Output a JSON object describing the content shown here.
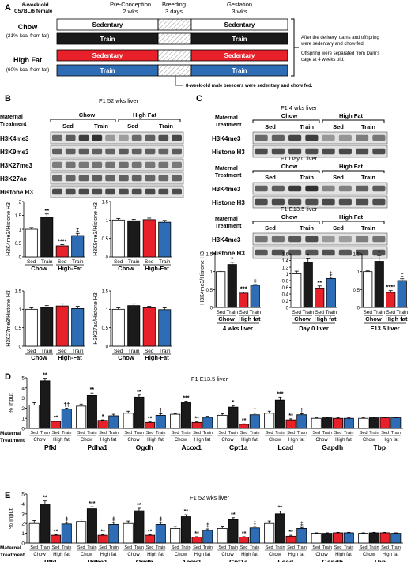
{
  "colors": {
    "sed": "#ffffff",
    "train": "#1a1a1a",
    "hf_sed": "#e8202a",
    "hf_train": "#2e6db5",
    "hatch": "#9a9a9a"
  },
  "panelA": {
    "letter": "A",
    "mouse_line1": "6-week-old",
    "mouse_line2": "C57BL/6 female",
    "col_preconception": [
      "Pre-Conception",
      "2 wks"
    ],
    "col_breeding": [
      "Breeding",
      "3 days"
    ],
    "col_gestation": [
      "Gestation",
      "3 wks"
    ],
    "chow_label": "Chow",
    "chow_sub": "(21% kcal from fat)",
    "hf_label": "High Fat",
    "hf_sub": "(60% kcal from fat)",
    "row_labels": [
      "Sedentary",
      "Train",
      "Sedentary",
      "Train"
    ],
    "note1": [
      "After the delivery, dams and offspring",
      "were sedentary and chow-fed."
    ],
    "note2": [
      "Offspring were separated from Dam's",
      "cage at 4 weeks old."
    ],
    "male_note": "8-week-old male breeders were sedentary and chow fed."
  },
  "panelB": {
    "letter": "B",
    "title": "F1 52 wks liver",
    "maternal": [
      "Maternal",
      "Treatment"
    ],
    "groups": [
      "Chow",
      "High Fat"
    ],
    "lanes": [
      "Sed",
      "Train",
      "Sed",
      "Train"
    ],
    "blots": [
      "H3K4me3",
      "H3K9me3",
      "H3K27me3",
      "H3K27ac",
      "Histone H3"
    ],
    "axis_group": [
      "Chow",
      "High-Fat"
    ]
  },
  "panelC": {
    "letter": "C",
    "blot_sets": [
      {
        "title": "F1 4 wks liver",
        "bands": [
          "H3K4me3",
          "Histone H3"
        ]
      },
      {
        "title": "F1 Day 0 liver",
        "bands": [
          "H3K4me3",
          "Histone H3"
        ]
      },
      {
        "title": "F1 E13.5 liver",
        "bands": [
          "H3K4me3",
          "Histone H3"
        ]
      }
    ],
    "maternal": [
      "Maternal",
      "Treatment"
    ],
    "groups": [
      "Chow",
      "High Fat"
    ],
    "lanes": [
      "Sed",
      "Train",
      "Sed",
      "Train"
    ],
    "ylabel": "H3K4me3/Histone H3",
    "sub_groups": [
      "Chow",
      "High fat"
    ]
  },
  "panelD": {
    "letter": "D",
    "title": "F1 E13.5 liver",
    "ylabel": "% Input"
  },
  "panelE": {
    "letter": "E",
    "title": "F1 52 wks liver",
    "ylabel": "% Input"
  },
  "chart_data": [
    {
      "type": "bar",
      "panel": "B",
      "ylabel": "H3K4me3/Histone H3",
      "ylim": [
        0,
        2
      ],
      "yticks": [
        "0",
        "0.5",
        "1",
        "1.5",
        "2"
      ],
      "categories": [
        "Sed",
        "Train",
        "Sed",
        "Train"
      ],
      "groups": [
        "Chow",
        "High-Fat"
      ],
      "values": [
        1.0,
        1.43,
        0.4,
        0.77
      ],
      "errors": [
        0.06,
        0.12,
        0.04,
        0.08
      ],
      "sig": [
        "",
        "**",
        "****",
        "‡"
      ]
    },
    {
      "type": "bar",
      "panel": "B",
      "ylabel": "H3K9me3/Histone H3",
      "ylim": [
        0,
        1.5
      ],
      "yticks": [
        "0",
        "0.5",
        "1",
        "1.5"
      ],
      "categories": [
        "Sed",
        "Train",
        "Sed",
        "Train"
      ],
      "groups": [
        "Chow",
        "High-Fat"
      ],
      "values": [
        1.0,
        0.98,
        1.01,
        0.94
      ],
      "errors": [
        0.04,
        0.04,
        0.04,
        0.05
      ],
      "sig": [
        "",
        "",
        "",
        ""
      ]
    },
    {
      "type": "bar",
      "panel": "B",
      "ylabel": "H3K27me3/Histone H3",
      "ylim": [
        0,
        1.5
      ],
      "yticks": [
        "0",
        "0.5",
        "1",
        "1.5"
      ],
      "categories": [
        "Sed",
        "Train",
        "Sed",
        "Train"
      ],
      "groups": [
        "Chow",
        "High-Fat"
      ],
      "values": [
        1.0,
        1.05,
        1.09,
        1.02
      ],
      "errors": [
        0.04,
        0.05,
        0.06,
        0.06
      ],
      "sig": [
        "",
        "",
        "",
        ""
      ]
    },
    {
      "type": "bar",
      "panel": "B",
      "ylabel": "H3K27ac/Histone H3",
      "ylim": [
        0,
        1.5
      ],
      "yticks": [
        "0",
        "0.5",
        "1",
        "1.5"
      ],
      "categories": [
        "Sed",
        "Train",
        "Sed",
        "Train"
      ],
      "groups": [
        "Chow",
        "High-Fat"
      ],
      "values": [
        1.0,
        1.1,
        1.04,
        0.99
      ],
      "errors": [
        0.04,
        0.05,
        0.04,
        0.05
      ],
      "sig": [
        "",
        "",
        "",
        ""
      ]
    },
    {
      "type": "bar",
      "panel": "C",
      "subtitle": "4 wks liver",
      "ylim": [
        0,
        1.5
      ],
      "yticks": [
        "0",
        "0.5",
        "1",
        "1.5"
      ],
      "categories": [
        "Sed",
        "Train",
        "Sed",
        "Train"
      ],
      "groups": [
        "Chow",
        "High fat"
      ],
      "values": [
        1.0,
        1.2,
        0.4,
        0.62
      ],
      "errors": [
        0.05,
        0.06,
        0.03,
        0.02
      ],
      "sig": [
        "",
        "*",
        "***",
        "‡"
      ]
    },
    {
      "type": "bar",
      "panel": "C",
      "subtitle": "Day 0 liver",
      "ylim": [
        0,
        1.6
      ],
      "yticks": [
        "0",
        "0.2",
        "0.4",
        "0.6",
        "0.8",
        "1",
        "1.2",
        "1.4",
        "1.6"
      ],
      "categories": [
        "Sed",
        "Train",
        "Sed",
        "Train"
      ],
      "groups": [
        "Chow",
        "High fat"
      ],
      "values": [
        1.0,
        1.33,
        0.58,
        0.86
      ],
      "errors": [
        0.08,
        0.12,
        0.06,
        0.04
      ],
      "sig": [
        "",
        "*",
        "**",
        "‡"
      ]
    },
    {
      "type": "bar",
      "panel": "C",
      "subtitle": "E13.5 liver",
      "ylim": [
        0,
        1.5
      ],
      "yticks": [
        "0",
        "0.5",
        "1",
        "1.5"
      ],
      "categories": [
        "Sed",
        "Train",
        "Sed",
        "Train"
      ],
      "groups": [
        "Chow",
        "High fat"
      ],
      "values": [
        1.0,
        1.29,
        0.42,
        0.75
      ],
      "errors": [
        0.02,
        0.16,
        0.05,
        0.05
      ],
      "sig": [
        "",
        "*",
        "****",
        "‡"
      ]
    },
    {
      "type": "bar",
      "panel": "D",
      "title": "F1 E13.5 liver",
      "ylabel": "% Input",
      "ylim": [
        0,
        5
      ],
      "yticks": [
        "0",
        "1",
        "2",
        "3",
        "4",
        "5"
      ],
      "xlabel_left": [
        "Maternal",
        "Treatment"
      ],
      "categories": [
        "Pfkl",
        "Pdha1",
        "Ogdh",
        "Acox1",
        "Cpt1a",
        "Lcad",
        "Gapdh",
        "Tbp"
      ],
      "subgroups": [
        "Chow",
        "High fat"
      ],
      "tick_labels": [
        "Sed",
        "Train",
        "Sed",
        "Train"
      ],
      "series": [
        {
          "values": [
            2.3,
            2.2,
            1.5,
            1.4,
            1.3,
            1.5,
            1.0,
            1.0
          ],
          "errors": [
            0.25,
            0.2,
            0.2,
            0.05,
            0.15,
            0.2,
            0.05,
            0.05
          ]
        },
        {
          "values": [
            4.7,
            3.25,
            3.1,
            2.6,
            2.1,
            2.8,
            1.05,
            1.05
          ],
          "errors": [
            0.25,
            0.25,
            0.2,
            0.1,
            0.15,
            0.3,
            0.05,
            0.05
          ]
        },
        {
          "values": [
            0.7,
            0.8,
            0.6,
            0.6,
            0.4,
            0.85,
            1.0,
            1.05
          ],
          "errors": [
            0.05,
            0.05,
            0.05,
            0.05,
            0.05,
            0.1,
            0.05,
            0.05
          ]
        },
        {
          "values": [
            1.9,
            1.25,
            1.3,
            1.1,
            1.35,
            1.35,
            1.0,
            1.05
          ],
          "errors": [
            0.1,
            0.15,
            0.15,
            0.1,
            0.15,
            0.1,
            0.05,
            0.05
          ]
        }
      ],
      "sig": [
        [
          "",
          "**",
          "**",
          "††"
        ],
        [
          "",
          "**",
          "*",
          ""
        ],
        [
          "",
          "**",
          "**",
          "†"
        ],
        [
          "",
          "***",
          "**",
          ""
        ],
        [
          "",
          "*",
          "**",
          "†"
        ],
        [
          "",
          "***",
          "**",
          "†"
        ],
        [
          "",
          "",
          "",
          ""
        ],
        [
          "",
          "",
          "",
          ""
        ]
      ]
    },
    {
      "type": "bar",
      "panel": "E",
      "title": "F1 52 wks liver",
      "ylabel": "% Input",
      "ylim": [
        0,
        5
      ],
      "yticks": [
        "0",
        "1",
        "2",
        "3",
        "4",
        "5"
      ],
      "xlabel_left": [
        "Maternal",
        "Treatment"
      ],
      "categories": [
        "Pfkl",
        "Pdha1",
        "Ogdh",
        "Acox1",
        "Cpt1a",
        "Lcad",
        "Gapdh",
        "Tbp"
      ],
      "subgroups": [
        "Chow",
        "High fat"
      ],
      "tick_labels": [
        "Sed",
        "Train",
        "Sed",
        "Train"
      ],
      "series": [
        {
          "values": [
            2.0,
            2.2,
            2.0,
            1.5,
            1.5,
            2.0,
            1.0,
            1.0
          ],
          "errors": [
            0.3,
            0.25,
            0.25,
            0.2,
            0.15,
            0.25,
            0.05,
            0.05
          ]
        },
        {
          "values": [
            4.0,
            3.5,
            3.3,
            2.7,
            2.4,
            3.0,
            1.0,
            1.05
          ],
          "errors": [
            0.3,
            0.2,
            0.25,
            0.2,
            0.2,
            0.25,
            0.05,
            0.05
          ]
        },
        {
          "values": [
            0.8,
            0.8,
            0.8,
            0.6,
            0.6,
            0.7,
            1.05,
            1.05
          ],
          "errors": [
            0.05,
            0.05,
            0.05,
            0.05,
            0.05,
            0.1,
            0.05,
            0.05
          ]
        },
        {
          "values": [
            1.95,
            1.9,
            1.9,
            1.3,
            1.55,
            1.5,
            1.05,
            1.0
          ],
          "errors": [
            0.15,
            0.2,
            0.2,
            0.15,
            0.15,
            0.1,
            0.05,
            0.05
          ]
        }
      ],
      "sig": [
        [
          "",
          "**",
          "**",
          "‡"
        ],
        [
          "",
          "***",
          "**",
          "‡"
        ],
        [
          "",
          "**",
          "**",
          "‡"
        ],
        [
          "",
          "**",
          "**",
          "‡"
        ],
        [
          "",
          "**",
          "**",
          "‡"
        ],
        [
          "",
          "**",
          "**",
          "‡"
        ],
        [
          "",
          "",
          "",
          ""
        ],
        [
          "",
          "",
          "",
          ""
        ]
      ]
    }
  ]
}
